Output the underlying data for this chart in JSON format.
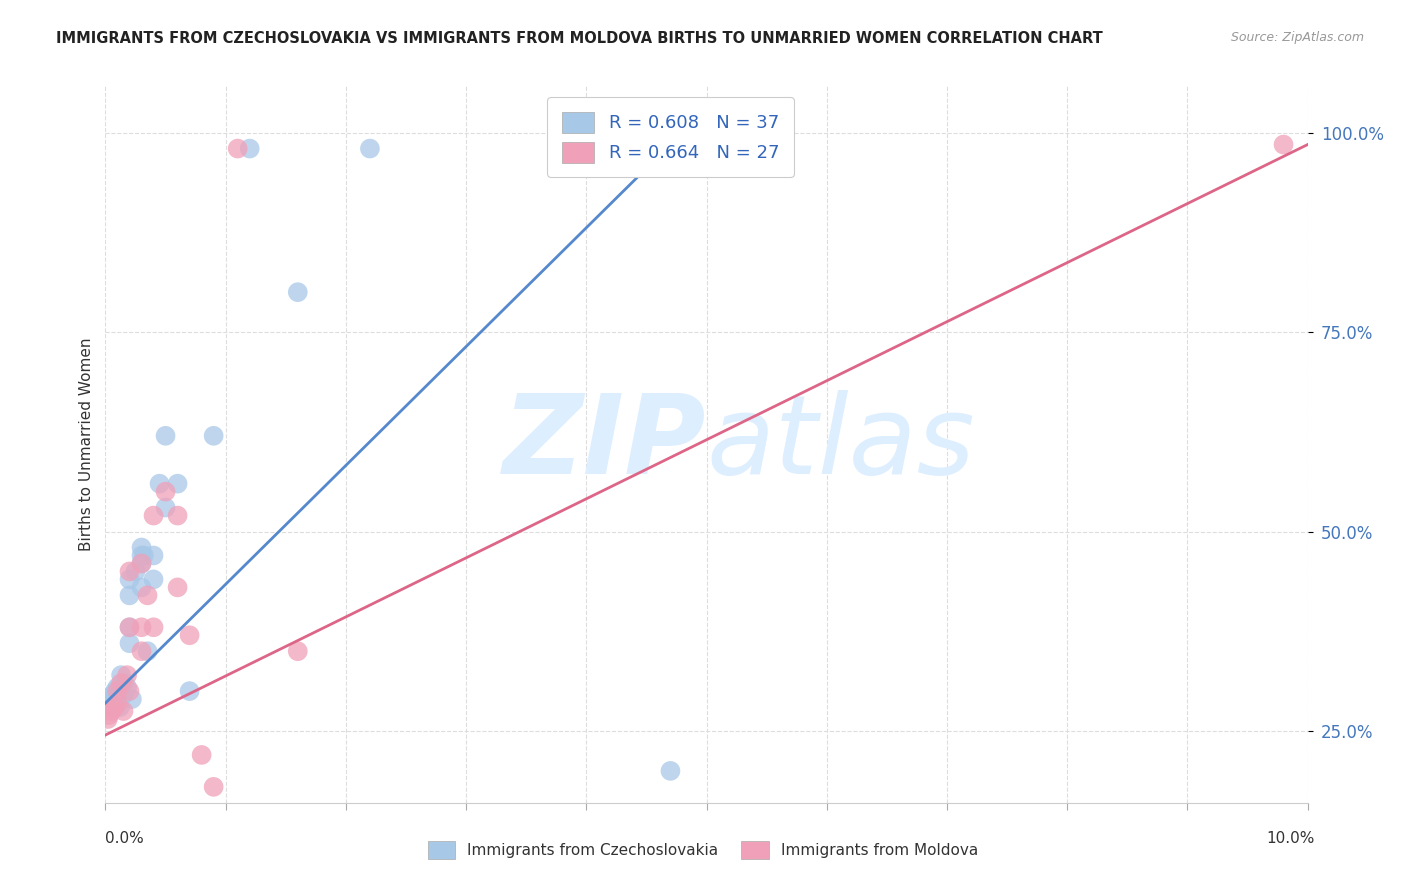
{
  "title": "IMMIGRANTS FROM CZECHOSLOVAKIA VS IMMIGRANTS FROM MOLDOVA BIRTHS TO UNMARRIED WOMEN CORRELATION CHART",
  "source": "Source: ZipAtlas.com",
  "ylabel": "Births to Unmarried Women",
  "yticks": [
    0.25,
    0.5,
    0.75,
    1.0
  ],
  "ytick_labels": [
    "25.0%",
    "50.0%",
    "75.0%",
    "100.0%"
  ],
  "xmin": 0.0,
  "xmax": 0.1,
  "ymin": 0.16,
  "ymax": 1.06,
  "legend_label1": "R = 0.608   N = 37",
  "legend_label2": "R = 0.664   N = 27",
  "legend_label_bottom1": "Immigrants from Czechoslovakia",
  "legend_label_bottom2": "Immigrants from Moldova",
  "color_blue": "#a8c8e8",
  "color_pink": "#f0a0b8",
  "line_color_blue": "#5588cc",
  "line_color_pink": "#dd6688",
  "watermark_color": "#ddeeff",
  "background_color": "#ffffff",
  "grid_color": "#dddddd",
  "blue_line_x0": 0.0,
  "blue_line_y0": 0.285,
  "blue_line_x1": 0.047,
  "blue_line_y1": 0.985,
  "pink_line_x0": 0.0,
  "pink_line_y0": 0.245,
  "pink_line_x1": 0.1,
  "pink_line_y1": 0.985,
  "blue_dots_x": [
    0.0003,
    0.0004,
    0.0005,
    0.0006,
    0.0008,
    0.001,
    0.001,
    0.0012,
    0.0013,
    0.0015,
    0.0015,
    0.0018,
    0.002,
    0.002,
    0.002,
    0.002,
    0.0022,
    0.0025,
    0.003,
    0.003,
    0.003,
    0.003,
    0.0032,
    0.0035,
    0.004,
    0.004,
    0.0045,
    0.005,
    0.005,
    0.006,
    0.007,
    0.009,
    0.012,
    0.016,
    0.022,
    0.047,
    0.047
  ],
  "blue_dots_y": [
    0.285,
    0.28,
    0.29,
    0.295,
    0.3,
    0.295,
    0.305,
    0.28,
    0.32,
    0.295,
    0.31,
    0.305,
    0.36,
    0.38,
    0.42,
    0.44,
    0.29,
    0.45,
    0.43,
    0.46,
    0.47,
    0.48,
    0.47,
    0.35,
    0.44,
    0.47,
    0.56,
    0.53,
    0.62,
    0.56,
    0.3,
    0.62,
    0.98,
    0.8,
    0.98,
    0.985,
    0.2
  ],
  "pink_dots_x": [
    0.0002,
    0.0003,
    0.0005,
    0.0008,
    0.001,
    0.001,
    0.0013,
    0.0015,
    0.0018,
    0.002,
    0.002,
    0.002,
    0.003,
    0.003,
    0.003,
    0.0035,
    0.004,
    0.004,
    0.005,
    0.006,
    0.006,
    0.007,
    0.008,
    0.009,
    0.011,
    0.016,
    0.098
  ],
  "pink_dots_y": [
    0.265,
    0.27,
    0.275,
    0.28,
    0.285,
    0.3,
    0.31,
    0.275,
    0.32,
    0.3,
    0.38,
    0.45,
    0.35,
    0.38,
    0.46,
    0.42,
    0.38,
    0.52,
    0.55,
    0.43,
    0.52,
    0.37,
    0.22,
    0.18,
    0.98,
    0.35,
    0.985
  ]
}
